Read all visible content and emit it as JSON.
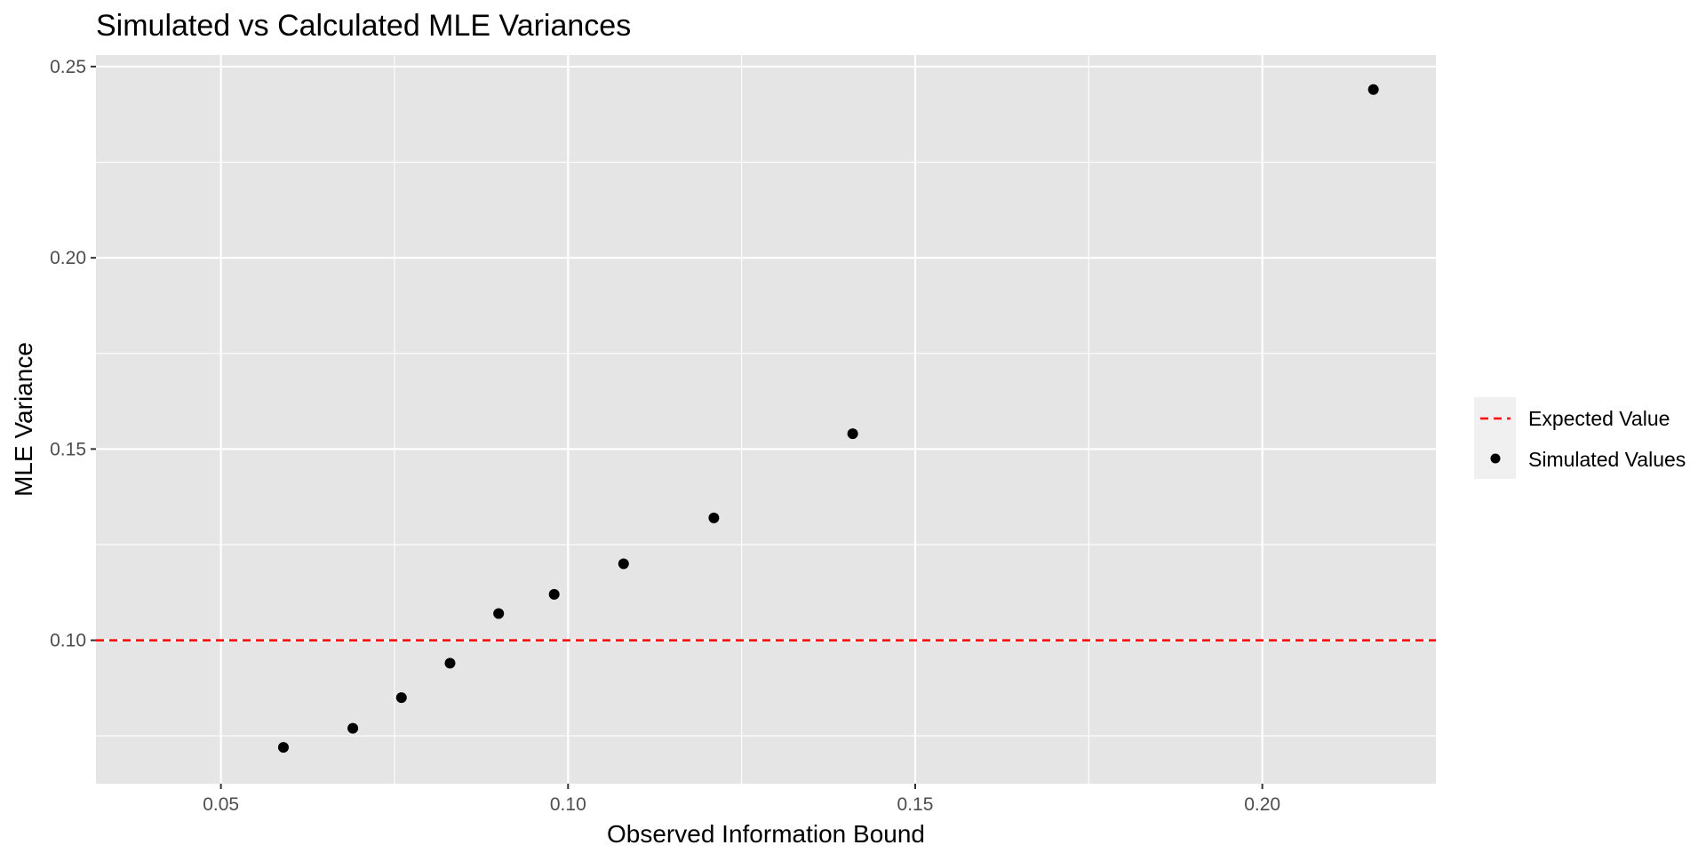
{
  "chart_data": {
    "type": "scatter",
    "title": "Simulated vs Calculated MLE Variances",
    "xlabel": "Observed Information Bound",
    "ylabel": "MLE Variance",
    "xlim": [
      0.032,
      0.225
    ],
    "ylim": [
      0.0625,
      0.253
    ],
    "x_ticks": [
      0.05,
      0.1,
      0.15,
      0.2
    ],
    "x_tick_labels": [
      "0.05",
      "0.10",
      "0.15",
      "0.20"
    ],
    "y_ticks": [
      0.1,
      0.15,
      0.2,
      0.25
    ],
    "y_tick_labels": [
      "0.10",
      "0.15",
      "0.20",
      "0.25"
    ],
    "grid": true,
    "background": "#e5e5e5",
    "series": [
      {
        "name": "Simulated Values",
        "kind": "points",
        "color": "#000000",
        "x": [
          0.059,
          0.069,
          0.076,
          0.083,
          0.09,
          0.098,
          0.108,
          0.121,
          0.141,
          0.216
        ],
        "y": [
          0.072,
          0.077,
          0.085,
          0.094,
          0.107,
          0.112,
          0.12,
          0.132,
          0.154,
          0.244
        ]
      },
      {
        "name": "Expected Value",
        "kind": "hline",
        "color": "#ff0000",
        "y": 0.1
      }
    ],
    "legend": {
      "position": "right",
      "items": [
        {
          "label": "Expected Value",
          "symbol": "dashed-line",
          "color": "#ff0000"
        },
        {
          "label": "Simulated Values",
          "symbol": "point",
          "color": "#000000"
        }
      ]
    }
  }
}
